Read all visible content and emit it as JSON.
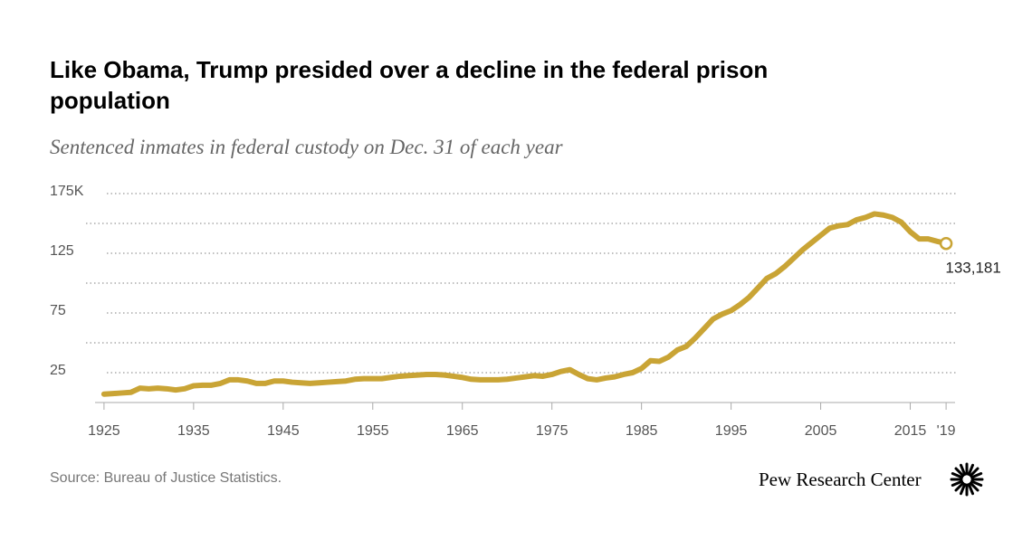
{
  "chart_data": {
    "type": "line",
    "title": "Like Obama, Trump presided over a decline in the federal prison population",
    "subtitle": "Sentenced inmates in federal custody on Dec. 31 of each year",
    "source": "Source: Bureau of Justice Statistics.",
    "brand": "Pew Research Center",
    "color": "#c9a435",
    "x": [
      1925,
      1926,
      1927,
      1928,
      1929,
      1930,
      1931,
      1932,
      1933,
      1934,
      1935,
      1936,
      1937,
      1938,
      1939,
      1940,
      1941,
      1942,
      1943,
      1944,
      1945,
      1946,
      1947,
      1948,
      1949,
      1950,
      1951,
      1952,
      1953,
      1954,
      1955,
      1956,
      1957,
      1958,
      1959,
      1960,
      1961,
      1962,
      1963,
      1964,
      1965,
      1966,
      1967,
      1968,
      1969,
      1970,
      1971,
      1972,
      1973,
      1974,
      1975,
      1976,
      1977,
      1978,
      1979,
      1980,
      1981,
      1982,
      1983,
      1984,
      1985,
      1986,
      1987,
      1988,
      1989,
      1990,
      1991,
      1992,
      1993,
      1994,
      1995,
      1996,
      1997,
      1998,
      1999,
      2000,
      2001,
      2002,
      2003,
      2004,
      2005,
      2006,
      2007,
      2008,
      2009,
      2010,
      2011,
      2012,
      2013,
      2014,
      2015,
      2016,
      2017,
      2018,
      2019
    ],
    "values": [
      7,
      7.5,
      8,
      8.5,
      12,
      11.5,
      12,
      11.5,
      10.5,
      11.5,
      14,
      14.5,
      14.5,
      16,
      19,
      19,
      18,
      16,
      16,
      18,
      18,
      17,
      16.5,
      16,
      16.5,
      17,
      17.5,
      18,
      19.5,
      20,
      20,
      20,
      21,
      22,
      22.5,
      23,
      23.5,
      23.5,
      23,
      22,
      21,
      19.5,
      19,
      19,
      19,
      19.5,
      20.5,
      21.5,
      22.5,
      22,
      23.5,
      26,
      27.5,
      23.5,
      20,
      19,
      20.5,
      21.5,
      23.5,
      25,
      28.5,
      35,
      34.5,
      38,
      44,
      47,
      54,
      62,
      70,
      74,
      77,
      82,
      88,
      96,
      104,
      108,
      114,
      121,
      128,
      134,
      140,
      146,
      148,
      149,
      153,
      155,
      158,
      157,
      155,
      151,
      143,
      137,
      137,
      135,
      133.181
    ],
    "end_label": "133,181",
    "xlim": [
      1924,
      2020
    ],
    "xticks": [
      1925,
      1935,
      1945,
      1955,
      1965,
      1975,
      1985,
      1995,
      2005,
      2015,
      {
        "value": 2019,
        "label": "'19"
      }
    ],
    "ylim": [
      0,
      175
    ],
    "yticks": [
      25,
      75,
      125,
      {
        "value": 175,
        "label": "175K"
      }
    ],
    "minor_gridlines": [
      50,
      100,
      150
    ],
    "grid": true
  }
}
